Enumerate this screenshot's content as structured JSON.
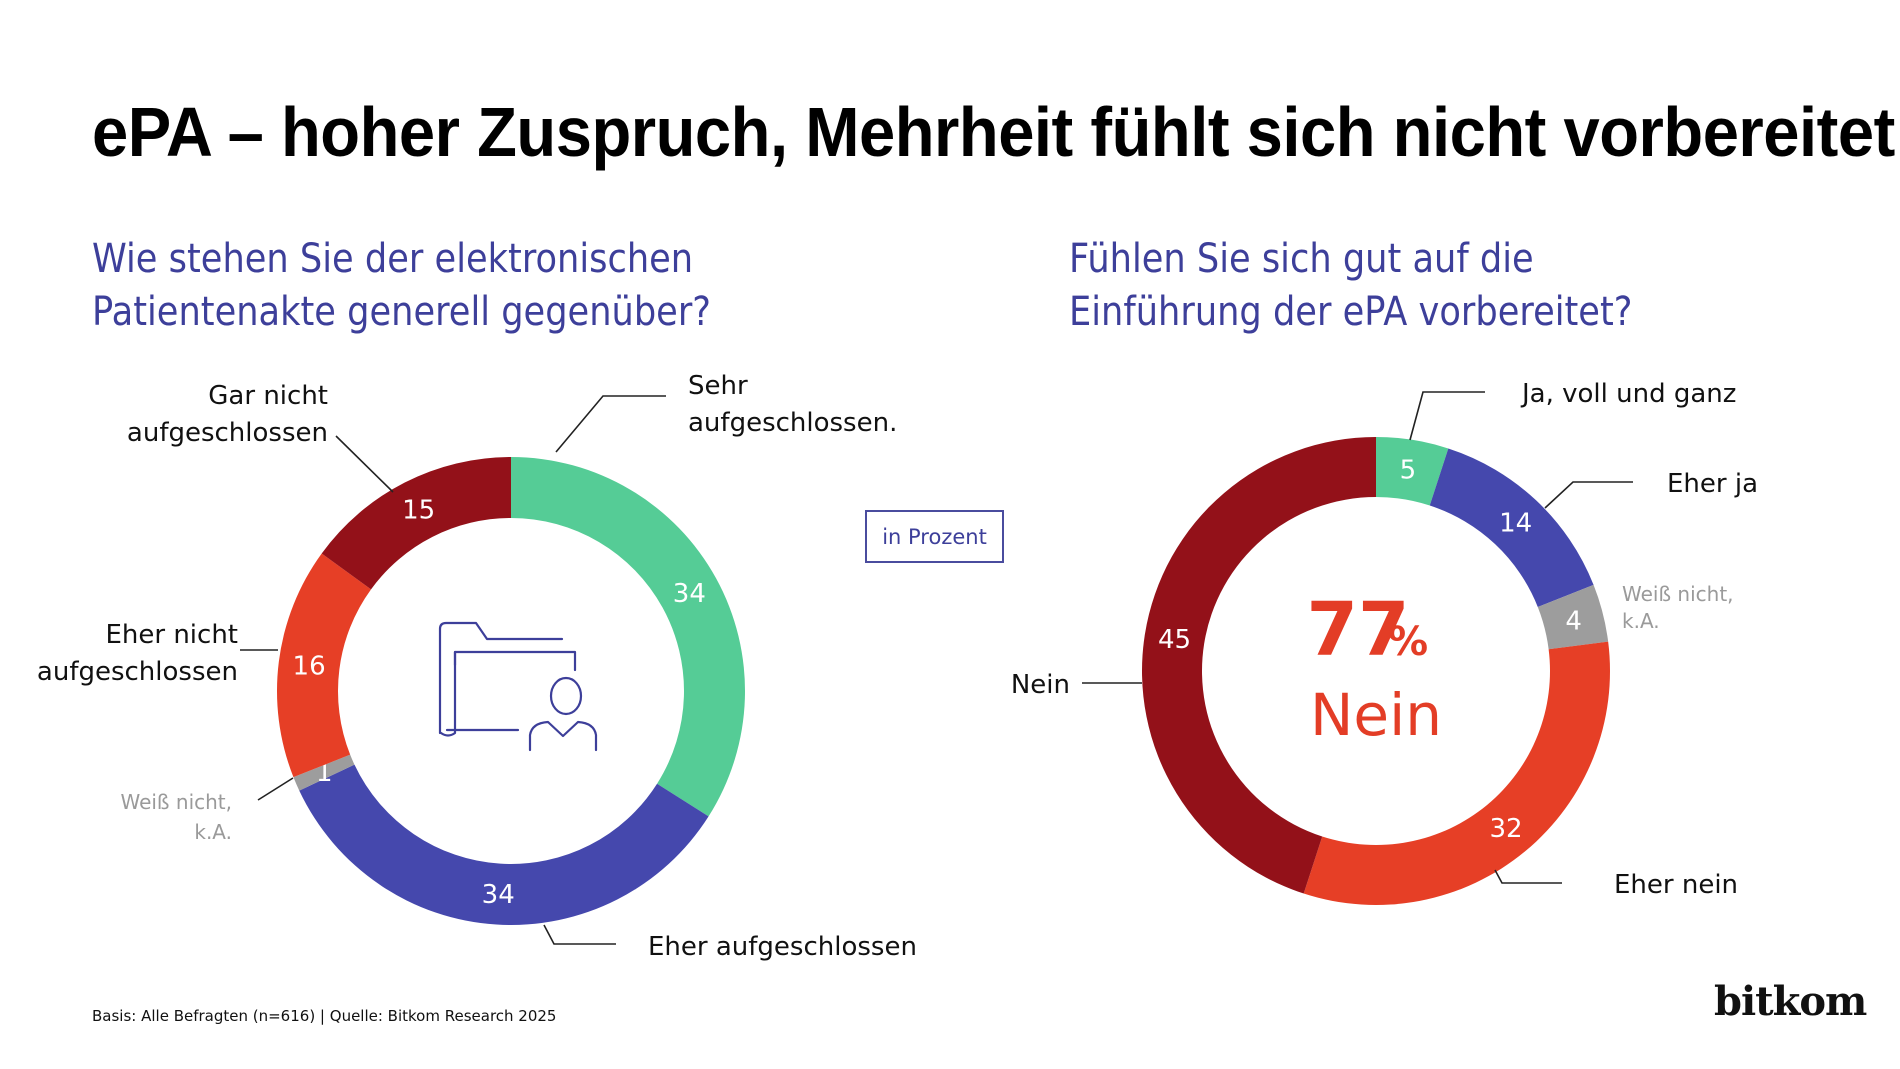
{
  "title": "ePA – hoher Zuspruch, Mehrheit fühlt sich nicht vorbereitet",
  "unit_note": "in Prozent",
  "footnote": "Basis: Alle Befragten (n=616) | Quelle: Bitkom Research 2025",
  "logo": "bitkom",
  "colors": {
    "green": "#55cc96",
    "blue": "#4548ad",
    "grey": "#9d9d9d",
    "orange_red": "#e63f26",
    "dark_red": "#931119",
    "question_text": "#3d3f9a",
    "highlight": "#e33d26"
  },
  "chart_data": [
    {
      "type": "pie",
      "variant": "donut",
      "title": "Wie stehen Sie der elektronischen Patientenakte generell gegenüber?",
      "title_lines": [
        "Wie stehen Sie der elektronischen",
        "Patientenakte generell gegenüber?"
      ],
      "unit": "in Prozent",
      "direction": "clockwise-from-top",
      "center_icon": "folder-person-icon",
      "slices": [
        {
          "label": "Sehr aufgeschlossen.",
          "label_lines": [
            "Sehr",
            "aufgeschlossen."
          ],
          "value": 34,
          "color": "#55cc96",
          "muted": false
        },
        {
          "label": "Eher aufgeschlossen",
          "label_lines": [
            "Eher aufgeschlossen"
          ],
          "value": 34,
          "color": "#4548ad",
          "muted": false
        },
        {
          "label": "Weiß nicht, k.A.",
          "label_lines": [
            "Weiß nicht,",
            "k.A."
          ],
          "value": 1,
          "color": "#9d9d9d",
          "muted": true
        },
        {
          "label": "Eher nicht aufgeschlossen",
          "label_lines": [
            "Eher nicht",
            "aufgeschlossen"
          ],
          "value": 16,
          "color": "#e63f26",
          "muted": false
        },
        {
          "label": "Gar nicht aufgeschlossen",
          "label_lines": [
            "Gar nicht",
            "aufgeschlossen"
          ],
          "value": 15,
          "color": "#931119",
          "muted": false
        }
      ]
    },
    {
      "type": "pie",
      "variant": "donut",
      "title": "Fühlen Sie sich gut auf die Einführung der ePA vorbereitet?",
      "title_lines": [
        "Fühlen Sie sich gut auf die",
        "Einführung der ePA vorbereitet?"
      ],
      "unit": "in Prozent",
      "direction": "clockwise-from-top",
      "center_text": {
        "value": "77",
        "suffix": "%",
        "word": "Nein"
      },
      "slices": [
        {
          "label": "Ja, voll und ganz",
          "label_lines": [
            "Ja, voll und ganz"
          ],
          "value": 5,
          "color": "#55cc96",
          "muted": false
        },
        {
          "label": "Eher ja",
          "label_lines": [
            "Eher ja"
          ],
          "value": 14,
          "color": "#4548ad",
          "muted": false
        },
        {
          "label": "Weiß nicht, k.A.",
          "label_lines": [
            "Weiß nicht,",
            "k.A."
          ],
          "value": 4,
          "color": "#9d9d9d",
          "muted": true
        },
        {
          "label": "Eher nein",
          "label_lines": [
            "Eher nein"
          ],
          "value": 32,
          "color": "#e63f26",
          "muted": false
        },
        {
          "label": "Nein",
          "label_lines": [
            "Nein"
          ],
          "value": 45,
          "color": "#931119",
          "muted": false
        }
      ]
    }
  ]
}
